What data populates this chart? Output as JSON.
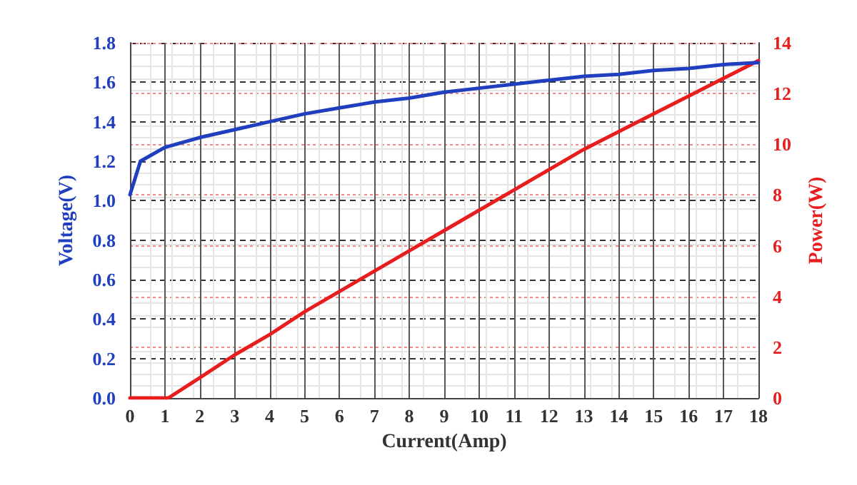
{
  "chart_data": {
    "type": "line",
    "xlabel": "Current(Amp)",
    "ylabel": "Voltage(V)",
    "y2label": "Power(W)",
    "xlim": [
      0,
      18
    ],
    "xticks": [
      0,
      1,
      2,
      3,
      4,
      5,
      6,
      7,
      8,
      9,
      10,
      11,
      12,
      13,
      14,
      15,
      16,
      17,
      18
    ],
    "ylim": [
      0,
      1.8
    ],
    "yticks": [
      {
        "value": 0,
        "label": "0.0"
      },
      0.2,
      0.4,
      0.6,
      0.8,
      {
        "value": 1,
        "label": "1.0"
      },
      1.2,
      1.4,
      1.6,
      1.8
    ],
    "y2lim": [
      0,
      14
    ],
    "y2ticks": [
      0,
      2,
      4,
      6,
      8,
      10,
      12,
      14
    ],
    "grid": true,
    "marker": "none",
    "line_style": "solid",
    "series": [
      {
        "color": "#1f3fbf",
        "x": [
          0,
          0.3,
          1,
          2,
          3,
          4,
          5,
          6,
          7,
          8,
          9,
          10,
          11,
          12,
          13,
          14,
          15,
          16,
          17,
          18
        ],
        "values": [
          1.03,
          1.2,
          1.27,
          1.32,
          1.36,
          1.4,
          1.44,
          1.47,
          1.5,
          1.52,
          1.55,
          1.57,
          1.59,
          1.61,
          1.63,
          1.64,
          1.66,
          1.67,
          1.69,
          1.7
        ]
      },
      {
        "color": "#e81e1e",
        "axis": "y2",
        "x": [
          0,
          1.1,
          2,
          3,
          4,
          5,
          6,
          7,
          8,
          9,
          10,
          11,
          12,
          13,
          14,
          15,
          16,
          17,
          18
        ],
        "values": [
          0,
          0,
          0.8,
          1.7,
          2.5,
          3.4,
          4.2,
          5.0,
          5.8,
          6.6,
          7.4,
          8.2,
          9.0,
          9.8,
          10.5,
          11.2,
          11.9,
          12.6,
          13.3
        ]
      }
    ]
  }
}
